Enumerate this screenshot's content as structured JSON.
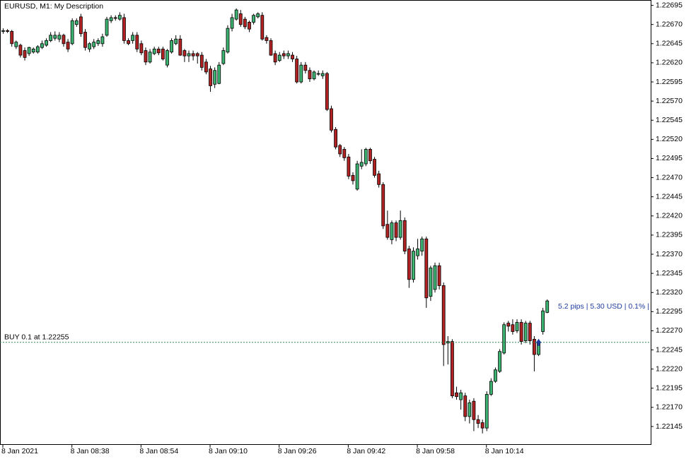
{
  "chart_data": {
    "type": "candlestick",
    "title": "EURUSD, M1:  My Description",
    "categories": [
      "8 Jan 2021",
      null,
      null,
      null,
      null,
      null,
      null,
      null,
      null,
      null,
      null,
      null,
      null,
      null,
      null,
      null,
      "8 Jan 08:38",
      null,
      null,
      null,
      null,
      null,
      null,
      null,
      null,
      null,
      null,
      null,
      null,
      null,
      null,
      null,
      "8 Jan 08:54",
      null,
      null,
      null,
      null,
      null,
      null,
      null,
      null,
      null,
      null,
      null,
      null,
      null,
      null,
      null,
      "8 Jan 09:10",
      null,
      null,
      null,
      null,
      null,
      null,
      null,
      null,
      null,
      null,
      null,
      null,
      null,
      null,
      null,
      "8 Jan 09:26",
      null,
      null,
      null,
      null,
      null,
      null,
      null,
      null,
      null,
      null,
      null,
      null,
      null,
      null,
      null,
      "8 Jan 09:42",
      null,
      null,
      null,
      null,
      null,
      null,
      null,
      null,
      null,
      null,
      null,
      null,
      null,
      null,
      null,
      "8 Jan 09:58",
      null,
      null,
      null,
      null,
      null,
      null,
      null,
      null,
      null,
      null,
      null,
      null,
      null,
      null,
      null,
      "8 Jan 10:14",
      null,
      null,
      null,
      null,
      null,
      null,
      null,
      null,
      null,
      null,
      null,
      null,
      null,
      null
    ],
    "open": [
      1.22661,
      1.22662,
      1.22661,
      1.22641,
      1.22643,
      1.22636,
      1.22632,
      1.22634,
      1.22634,
      1.2264,
      1.22643,
      1.22649,
      1.22652,
      1.22651,
      1.22656,
      1.22647,
      1.22645,
      1.2267,
      1.2268,
      1.2266,
      1.22638,
      1.22641,
      1.22645,
      1.22645,
      1.22656,
      1.22675,
      1.22679,
      1.22677,
      1.22679,
      1.22649,
      1.22649,
      1.22656,
      1.22645,
      1.22636,
      1.22621,
      1.22632,
      1.22638,
      1.22638,
      1.22617,
      1.22634,
      1.22645,
      1.22651,
      1.22636,
      1.22629,
      1.22632,
      1.22632,
      1.2263,
      1.22621,
      1.22612,
      1.22592,
      1.22593,
      1.22619,
      1.22634,
      1.22665,
      1.22677,
      1.22684,
      1.22677,
      1.22673,
      1.22673,
      1.2268,
      1.22682,
      1.22653,
      1.22649,
      1.22632,
      1.22623,
      1.22632,
      1.22629,
      1.2263,
      1.22625,
      1.22595,
      1.22617,
      1.2261,
      1.22599,
      1.22606,
      1.22603,
      1.22606,
      1.2256,
      1.22533,
      1.22512,
      1.22507,
      1.22497,
      1.22473,
      1.22455,
      1.22485,
      1.22488,
      1.22507,
      1.22494,
      1.22475,
      1.22461,
      1.22409,
      1.22389,
      1.22411,
      1.22392,
      1.22414,
      1.22377,
      1.22337,
      1.22368,
      1.22374,
      1.2239,
      1.22315,
      1.22324,
      1.22355,
      1.22329,
      1.22254,
      1.22256,
      1.22189,
      1.2218,
      1.22185,
      1.22158,
      1.22178,
      1.22154,
      1.2215,
      1.22143,
      1.22187,
      1.22204,
      1.22217,
      1.22241,
      1.2228,
      1.22278,
      1.2227,
      1.22281,
      1.22257,
      1.2228,
      1.22259,
      1.22239,
      1.22269,
      1.22294
    ],
    "high": [
      1.22665,
      1.22664,
      1.22663,
      1.22649,
      1.22645,
      1.2264,
      1.22641,
      1.2264,
      1.22643,
      1.22649,
      1.22652,
      1.2266,
      1.22661,
      1.2266,
      1.22658,
      1.22651,
      1.22678,
      1.22678,
      1.22684,
      1.22664,
      1.22647,
      1.22651,
      1.22652,
      1.22658,
      1.2268,
      1.22682,
      1.22682,
      1.22686,
      1.22684,
      1.22652,
      1.2266,
      1.2266,
      1.22649,
      1.2264,
      1.22638,
      1.22641,
      1.22641,
      1.22641,
      1.22638,
      1.22652,
      1.22656,
      1.22656,
      1.22638,
      1.22636,
      1.22636,
      1.22634,
      1.22634,
      1.22625,
      1.22616,
      1.22614,
      1.22621,
      1.2264,
      1.22669,
      1.22684,
      1.22691,
      1.22689,
      1.2268,
      1.22675,
      1.22684,
      1.22686,
      1.22686,
      1.22656,
      1.22652,
      1.22636,
      1.22634,
      1.22636,
      1.22636,
      1.22634,
      1.22629,
      1.22621,
      1.22621,
      1.22614,
      1.2261,
      1.2261,
      1.2261,
      1.22608,
      1.22564,
      1.22536,
      1.22514,
      1.2251,
      1.22501,
      1.22477,
      1.22492,
      1.22507,
      1.22509,
      1.22509,
      1.22497,
      1.22479,
      1.22464,
      1.22427,
      1.22414,
      1.22414,
      1.22427,
      1.22418,
      1.22381,
      1.22379,
      1.2239,
      1.22393,
      1.22393,
      1.22355,
      1.22359,
      1.22359,
      1.22333,
      1.22263,
      1.22259,
      1.22197,
      1.22193,
      1.22189,
      1.2218,
      1.22182,
      1.2216,
      1.22154,
      1.22191,
      1.22208,
      1.22222,
      1.22246,
      1.22281,
      1.22283,
      1.22285,
      1.22285,
      1.22285,
      1.22283,
      1.22283,
      1.22263,
      1.22259,
      1.223,
      1.22311
    ],
    "low": [
      1.22658,
      1.22659,
      1.22641,
      1.22638,
      1.22627,
      1.22623,
      1.22629,
      1.22632,
      1.22632,
      1.22638,
      1.22641,
      1.22647,
      1.22649,
      1.22647,
      1.22641,
      1.22634,
      1.22643,
      1.22667,
      1.22654,
      1.22636,
      1.22634,
      1.22638,
      1.22642,
      1.22641,
      1.22654,
      1.22672,
      1.22675,
      1.22675,
      1.22645,
      1.22643,
      1.22645,
      1.22634,
      1.2263,
      1.22617,
      1.22619,
      1.2263,
      1.2263,
      1.22623,
      1.22614,
      1.22632,
      1.22643,
      1.22629,
      1.22621,
      1.22621,
      1.22623,
      1.22619,
      1.2261,
      1.22605,
      1.22582,
      1.22587,
      1.22592,
      1.22617,
      1.22632,
      1.22661,
      1.22675,
      1.22667,
      1.22664,
      1.2266,
      1.2267,
      1.22678,
      1.22649,
      1.22645,
      1.22629,
      1.22617,
      1.22621,
      1.22625,
      1.22625,
      1.22621,
      1.22593,
      1.22593,
      1.22606,
      1.22595,
      1.22597,
      1.22603,
      1.22599,
      1.22557,
      1.22529,
      1.22507,
      1.22497,
      1.22492,
      1.22468,
      1.22461,
      1.22453,
      1.22481,
      1.22485,
      1.22488,
      1.2247,
      1.22457,
      1.22403,
      1.22389,
      1.22383,
      1.22387,
      1.22389,
      1.2237,
      1.22326,
      1.22333,
      1.22363,
      1.22368,
      1.223,
      1.22309,
      1.2232,
      1.22324,
      1.22224,
      1.22226,
      1.22182,
      1.2218,
      1.22167,
      1.22152,
      1.22149,
      1.22139,
      1.22143,
      1.22136,
      1.22139,
      1.22185,
      1.22202,
      1.22215,
      1.22239,
      1.22269,
      1.22265,
      1.22267,
      1.22252,
      1.22254,
      1.22252,
      1.22217,
      1.22237,
      1.22265,
      1.22293
    ],
    "close": [
      1.22662,
      1.22661,
      1.22645,
      1.22647,
      1.2263,
      1.22627,
      1.2264,
      1.22638,
      1.22641,
      1.22645,
      1.22649,
      1.22656,
      1.22656,
      1.22656,
      1.22645,
      1.22638,
      1.22675,
      1.22675,
      1.22658,
      1.2264,
      1.22645,
      1.22647,
      1.22649,
      1.22654,
      1.22677,
      1.22679,
      1.22678,
      1.22682,
      1.22649,
      1.22645,
      1.22656,
      1.22638,
      1.22633,
      1.22621,
      1.22634,
      1.22638,
      1.22633,
      1.22625,
      1.22636,
      1.22649,
      1.22651,
      1.2263,
      1.22629,
      1.22632,
      1.22629,
      1.22629,
      1.22614,
      1.22608,
      1.2259,
      1.2261,
      1.22617,
      1.22636,
      1.22665,
      1.22679,
      1.22689,
      1.2267,
      1.22667,
      1.22664,
      1.22682,
      1.22684,
      1.22651,
      1.22649,
      1.2263,
      1.22621,
      1.2263,
      1.22629,
      1.22632,
      1.22625,
      1.22595,
      1.22617,
      1.2261,
      1.22599,
      1.22608,
      1.22606,
      1.22606,
      1.22559,
      1.22532,
      1.2251,
      1.22501,
      1.22496,
      1.22472,
      1.22466,
      1.22488,
      1.2249,
      1.22507,
      1.22492,
      1.22473,
      1.22461,
      1.22407,
      1.22392,
      1.22411,
      1.22392,
      1.22414,
      1.22374,
      1.22337,
      1.22374,
      1.22377,
      1.2239,
      1.22313,
      1.22352,
      1.22355,
      1.22329,
      1.22252,
      1.22256,
      1.22185,
      1.22184,
      1.22189,
      1.22158,
      1.22176,
      1.22154,
      1.22149,
      1.22143,
      1.22187,
      1.22204,
      1.22219,
      1.22243,
      1.22278,
      1.22276,
      1.22269,
      1.22281,
      1.22256,
      1.2228,
      1.22257,
      1.22239,
      1.22256,
      1.22296,
      1.22309
    ],
    "up_color": "#3cb371",
    "down_color": "#b22222",
    "ylim": [
      1.22121,
      1.22702
    ],
    "yticks": [
      1.22695,
      {
        "value": 1.2267,
        "label": "1.22670"
      },
      1.22645,
      {
        "value": 1.2262,
        "label": "1.22620"
      },
      1.22595,
      {
        "value": 1.2257,
        "label": "1.22570"
      },
      1.22545,
      {
        "value": 1.2252,
        "label": "1.22520"
      },
      1.22495,
      {
        "value": 1.2247,
        "label": "1.22470"
      },
      1.22445,
      {
        "value": 1.2242,
        "label": "1.22420"
      },
      1.22395,
      {
        "value": 1.2237,
        "label": "1.22370"
      },
      1.22345,
      {
        "value": 1.2232,
        "label": "1.22320"
      },
      1.22295,
      {
        "value": 1.2227,
        "label": "1.22270"
      },
      1.22245,
      {
        "value": 1.2222,
        "label": "1.22220"
      },
      1.22195,
      {
        "value": 1.2217,
        "label": "1.22170"
      },
      1.22145
    ],
    "position_label": "BUY 0.1 at 1.22255",
    "position_price": 1.22255,
    "position_color": "#2e8b57",
    "profit_label": "5.2 pips | 5.30 USD | 0.1% |",
    "profit_color": "#1e3ca0"
  }
}
